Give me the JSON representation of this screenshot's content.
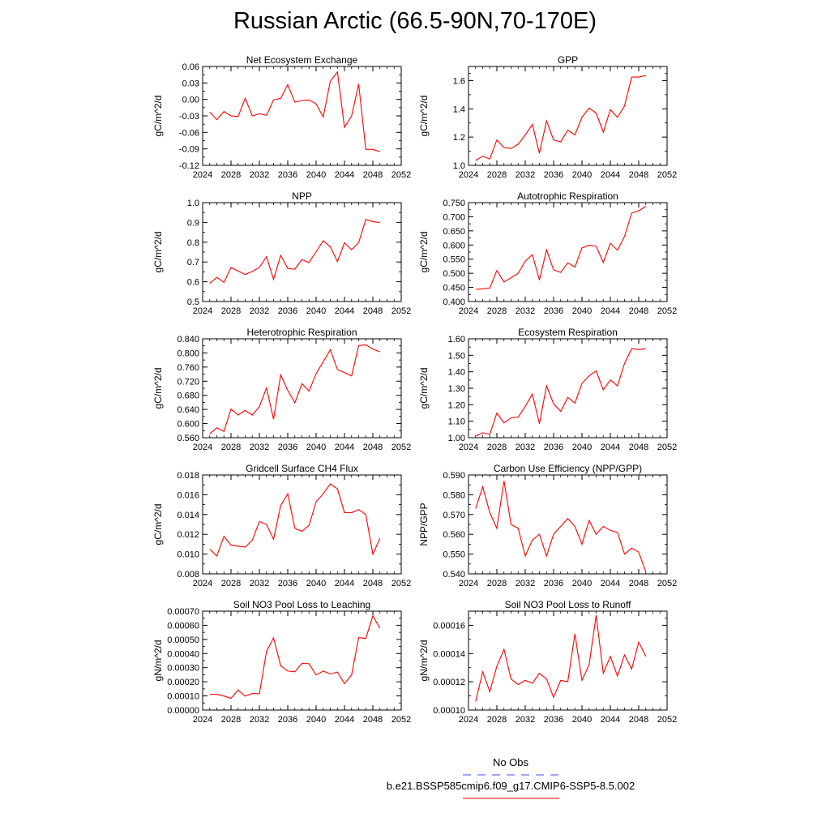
{
  "title": "Russian Arctic (66.5-90N,70-170E)",
  "colors": {
    "series": "#ff0000",
    "obs": "#4a4aff",
    "axis": "#000000"
  },
  "legend": {
    "obs_label": "No Obs",
    "model_label": "b.e21.BSSP585cmip6.f09_g17.CMIP6-SSP5-8.5.002"
  },
  "chart_data": [
    {
      "type": "line",
      "title": "Net Ecosystem Exchange",
      "ylabel": "gC/m^2/d",
      "xlabel": "",
      "xlim": [
        2024,
        2052
      ],
      "xticks": [
        2024,
        2028,
        2032,
        2036,
        2040,
        2044,
        2048,
        2052
      ],
      "ylim": [
        -0.12,
        0.06
      ],
      "yticks": [
        -0.12,
        -0.09,
        -0.06,
        -0.03,
        0.0,
        0.03,
        0.06
      ],
      "yticklabels": [
        "-0.12",
        "-0.09",
        "-0.06",
        "-0.03",
        "0.00",
        "0.03",
        "0.06"
      ],
      "x": [
        2025,
        2026,
        2027,
        2028,
        2029,
        2030,
        2031,
        2032,
        2033,
        2034,
        2035,
        2036,
        2037,
        2038,
        2039,
        2040,
        2041,
        2042,
        2043,
        2044,
        2045,
        2046,
        2047,
        2048,
        2049
      ],
      "values": [
        -0.023,
        -0.037,
        -0.022,
        -0.03,
        -0.031,
        0.002,
        -0.03,
        -0.026,
        -0.029,
        -0.001,
        0.002,
        0.027,
        -0.005,
        -0.002,
        -0.001,
        -0.008,
        -0.032,
        0.033,
        0.05,
        -0.051,
        -0.03,
        0.028,
        -0.091,
        -0.091,
        -0.095
      ]
    },
    {
      "type": "line",
      "title": "GPP",
      "ylabel": "gC/m^2/d",
      "xlabel": "",
      "xlim": [
        2024,
        2052
      ],
      "xticks": [
        2024,
        2028,
        2032,
        2036,
        2040,
        2044,
        2048,
        2052
      ],
      "ylim": [
        1.0,
        1.7
      ],
      "yticks": [
        1.0,
        1.2,
        1.4,
        1.6
      ],
      "yticklabels": [
        "1.0",
        "1.2",
        "1.4",
        "1.6"
      ],
      "x": [
        2025,
        2026,
        2027,
        2028,
        2029,
        2030,
        2031,
        2032,
        2033,
        2034,
        2035,
        2036,
        2037,
        2038,
        2039,
        2040,
        2041,
        2042,
        2043,
        2044,
        2045,
        2046,
        2047,
        2048,
        2049
      ],
      "values": [
        1.035,
        1.065,
        1.045,
        1.18,
        1.125,
        1.12,
        1.15,
        1.215,
        1.29,
        1.085,
        1.315,
        1.18,
        1.165,
        1.25,
        1.215,
        1.34,
        1.405,
        1.37,
        1.235,
        1.395,
        1.34,
        1.42,
        1.625,
        1.625,
        1.635
      ]
    },
    {
      "type": "line",
      "title": "NPP",
      "ylabel": "gC/m^2/d",
      "xlabel": "",
      "xlim": [
        2024,
        2052
      ],
      "xticks": [
        2024,
        2028,
        2032,
        2036,
        2040,
        2044,
        2048,
        2052
      ],
      "ylim": [
        0.5,
        1.0
      ],
      "yticks": [
        0.5,
        0.6,
        0.7,
        0.8,
        0.9,
        1.0
      ],
      "yticklabels": [
        "0.5",
        "0.6",
        "0.7",
        "0.8",
        "0.9",
        "1.0"
      ],
      "x": [
        2025,
        2026,
        2027,
        2028,
        2029,
        2030,
        2031,
        2032,
        2033,
        2034,
        2035,
        2036,
        2037,
        2038,
        2039,
        2040,
        2041,
        2042,
        2043,
        2044,
        2045,
        2046,
        2047,
        2048,
        2049
      ],
      "values": [
        0.592,
        0.622,
        0.597,
        0.672,
        0.654,
        0.637,
        0.652,
        0.672,
        0.727,
        0.612,
        0.734,
        0.667,
        0.664,
        0.712,
        0.697,
        0.752,
        0.807,
        0.777,
        0.702,
        0.797,
        0.762,
        0.797,
        0.915,
        0.904,
        0.899
      ]
    },
    {
      "type": "line",
      "title": "Autotrophic Respiration",
      "ylabel": "gC/m^2/d",
      "xlabel": "",
      "xlim": [
        2024,
        2052
      ],
      "xticks": [
        2024,
        2028,
        2032,
        2036,
        2040,
        2044,
        2048,
        2052
      ],
      "ylim": [
        0.4,
        0.75
      ],
      "yticks": [
        0.4,
        0.45,
        0.5,
        0.55,
        0.6,
        0.65,
        0.7,
        0.75
      ],
      "yticklabels": [
        "0.400",
        "0.450",
        "0.500",
        "0.550",
        "0.600",
        "0.650",
        "0.700",
        "0.750"
      ],
      "x": [
        2025,
        2026,
        2027,
        2028,
        2029,
        2030,
        2031,
        2032,
        2033,
        2034,
        2035,
        2036,
        2037,
        2038,
        2039,
        2040,
        2041,
        2042,
        2043,
        2044,
        2045,
        2046,
        2047,
        2048,
        2049
      ],
      "values": [
        0.443,
        0.445,
        0.448,
        0.51,
        0.469,
        0.484,
        0.5,
        0.543,
        0.566,
        0.476,
        0.583,
        0.512,
        0.503,
        0.537,
        0.522,
        0.59,
        0.599,
        0.596,
        0.538,
        0.606,
        0.582,
        0.63,
        0.713,
        0.721,
        0.737
      ]
    },
    {
      "type": "line",
      "title": "Heterotrophic Respiration",
      "ylabel": "gC/m^2/d",
      "xlabel": "",
      "xlim": [
        2024,
        2052
      ],
      "xticks": [
        2024,
        2028,
        2032,
        2036,
        2040,
        2044,
        2048,
        2052
      ],
      "ylim": [
        0.56,
        0.84
      ],
      "yticks": [
        0.56,
        0.6,
        0.64,
        0.68,
        0.72,
        0.76,
        0.8,
        0.84
      ],
      "yticklabels": [
        "0.560",
        "0.600",
        "0.640",
        "0.680",
        "0.720",
        "0.760",
        "0.800",
        "0.840"
      ],
      "x": [
        2025,
        2026,
        2027,
        2028,
        2029,
        2030,
        2031,
        2032,
        2033,
        2034,
        2035,
        2036,
        2037,
        2038,
        2039,
        2040,
        2041,
        2042,
        2043,
        2044,
        2045,
        2046,
        2047,
        2048,
        2049
      ],
      "values": [
        0.571,
        0.588,
        0.578,
        0.641,
        0.624,
        0.637,
        0.624,
        0.648,
        0.701,
        0.612,
        0.738,
        0.694,
        0.659,
        0.713,
        0.692,
        0.741,
        0.775,
        0.809,
        0.753,
        0.744,
        0.735,
        0.821,
        0.823,
        0.811,
        0.803
      ]
    },
    {
      "type": "line",
      "title": "Ecosystem Respiration",
      "ylabel": "gC/m^2/d",
      "xlabel": "",
      "xlim": [
        2024,
        2052
      ],
      "xticks": [
        2024,
        2028,
        2032,
        2036,
        2040,
        2044,
        2048,
        2052
      ],
      "ylim": [
        1.0,
        1.6
      ],
      "yticks": [
        1.0,
        1.1,
        1.2,
        1.3,
        1.4,
        1.5,
        1.6
      ],
      "yticklabels": [
        "1.00",
        "1.10",
        "1.20",
        "1.30",
        "1.40",
        "1.50",
        "1.60"
      ],
      "x": [
        2025,
        2026,
        2027,
        2028,
        2029,
        2030,
        2031,
        2032,
        2033,
        2034,
        2035,
        2036,
        2037,
        2038,
        2039,
        2040,
        2041,
        2042,
        2043,
        2044,
        2045,
        2046,
        2047,
        2048,
        2049
      ],
      "values": [
        1.01,
        1.03,
        1.02,
        1.15,
        1.09,
        1.12,
        1.125,
        1.19,
        1.265,
        1.085,
        1.315,
        1.205,
        1.16,
        1.245,
        1.21,
        1.33,
        1.375,
        1.405,
        1.29,
        1.35,
        1.315,
        1.45,
        1.54,
        1.535,
        1.54
      ]
    },
    {
      "type": "line",
      "title": "Gridcell Surface CH4 Flux",
      "ylabel": "gC/m^2/d",
      "xlabel": "",
      "xlim": [
        2024,
        2052
      ],
      "xticks": [
        2024,
        2028,
        2032,
        2036,
        2040,
        2044,
        2048,
        2052
      ],
      "ylim": [
        0.008,
        0.018
      ],
      "yticks": [
        0.008,
        0.01,
        0.012,
        0.014,
        0.016,
        0.018
      ],
      "yticklabels": [
        "0.008",
        "0.010",
        "0.012",
        "0.014",
        "0.016",
        "0.018"
      ],
      "x": [
        2025,
        2026,
        2027,
        2028,
        2029,
        2030,
        2031,
        2032,
        2033,
        2034,
        2035,
        2036,
        2037,
        2038,
        2039,
        2040,
        2041,
        2042,
        2043,
        2044,
        2045,
        2046,
        2047,
        2048,
        2049
      ],
      "values": [
        0.0105,
        0.0098,
        0.0118,
        0.0109,
        0.0108,
        0.0107,
        0.0114,
        0.0133,
        0.013,
        0.0115,
        0.0149,
        0.0161,
        0.0126,
        0.0123,
        0.0129,
        0.0153,
        0.0161,
        0.0171,
        0.0166,
        0.0142,
        0.0142,
        0.0145,
        0.014,
        0.01,
        0.0116
      ]
    },
    {
      "type": "line",
      "title": "Carbon Use Efficiency (NPP/GPP)",
      "ylabel": "NPP/GPP",
      "xlabel": "",
      "xlim": [
        2024,
        2052
      ],
      "xticks": [
        2024,
        2028,
        2032,
        2036,
        2040,
        2044,
        2048,
        2052
      ],
      "ylim": [
        0.54,
        0.59
      ],
      "yticks": [
        0.54,
        0.55,
        0.56,
        0.57,
        0.58,
        0.59
      ],
      "yticklabels": [
        "0.540",
        "0.550",
        "0.560",
        "0.570",
        "0.580",
        "0.590"
      ],
      "x": [
        2025,
        2026,
        2027,
        2028,
        2029,
        2030,
        2031,
        2032,
        2033,
        2034,
        2035,
        2036,
        2037,
        2038,
        2039,
        2040,
        2041,
        2042,
        2043,
        2044,
        2045,
        2046,
        2047,
        2048,
        2049
      ],
      "values": [
        0.573,
        0.584,
        0.571,
        0.563,
        0.587,
        0.565,
        0.563,
        0.549,
        0.557,
        0.56,
        0.549,
        0.56,
        0.564,
        0.568,
        0.564,
        0.555,
        0.567,
        0.56,
        0.564,
        0.562,
        0.561,
        0.55,
        0.553,
        0.551,
        0.541
      ]
    },
    {
      "type": "line",
      "title": "Soil NO3 Pool Loss to Leaching",
      "ylabel": "gN/m^2/d",
      "xlabel": "",
      "xlim": [
        2024,
        2052
      ],
      "xticks": [
        2024,
        2028,
        2032,
        2036,
        2040,
        2044,
        2048,
        2052
      ],
      "ylim": [
        0.0,
        0.0007
      ],
      "yticks": [
        0.0,
        0.0001,
        0.0002,
        0.0003,
        0.0004,
        0.0005,
        0.0006,
        0.0007
      ],
      "yticklabels": [
        "0.00000",
        "0.00010",
        "0.00020",
        "0.00030",
        "0.00040",
        "0.00050",
        "0.00060",
        "0.00070"
      ],
      "x": [
        2025,
        2026,
        2027,
        2028,
        2029,
        2030,
        2031,
        2032,
        2033,
        2034,
        2035,
        2036,
        2037,
        2038,
        2039,
        2040,
        2041,
        2042,
        2043,
        2044,
        2045,
        2046,
        2047,
        2048,
        2049
      ],
      "values": [
        0.000111,
        0.000111,
        9.9e-05,
        8.3e-05,
        0.000142,
        9.8e-05,
        0.000117,
        0.000115,
        0.000415,
        0.000511,
        0.000313,
        0.000276,
        0.000271,
        0.00033,
        0.000328,
        0.000248,
        0.000276,
        0.000255,
        0.000269,
        0.000187,
        0.000249,
        0.000513,
        0.000507,
        0.000667,
        0.000579
      ]
    },
    {
      "type": "line",
      "title": "Soil NO3 Pool Loss to Runoff",
      "ylabel": "gN/m^2/d",
      "xlabel": "",
      "xlim": [
        2024,
        2052
      ],
      "xticks": [
        2024,
        2028,
        2032,
        2036,
        2040,
        2044,
        2048,
        2052
      ],
      "ylim": [
        0.0001,
        0.00017
      ],
      "yticks": [
        0.0001,
        0.00012,
        0.00014,
        0.00016
      ],
      "yticklabels": [
        "0.00010",
        "0.00012",
        "0.00014",
        "0.00016"
      ],
      "x": [
        2025,
        2026,
        2027,
        2028,
        2029,
        2030,
        2031,
        2032,
        2033,
        2034,
        2035,
        2036,
        2037,
        2038,
        2039,
        2040,
        2041,
        2042,
        2043,
        2044,
        2045,
        2046,
        2047,
        2048,
        2049
      ],
      "values": [
        0.000106,
        0.000127,
        0.000113,
        0.000131,
        0.000143,
        0.000122,
        0.000118,
        0.000121,
        0.000119,
        0.000126,
        0.000122,
        0.000109,
        0.000121,
        0.00012,
        0.000154,
        0.000121,
        0.000132,
        0.000167,
        0.000126,
        0.000138,
        0.000124,
        0.000139,
        0.000129,
        0.000148,
        0.000138
      ]
    }
  ]
}
